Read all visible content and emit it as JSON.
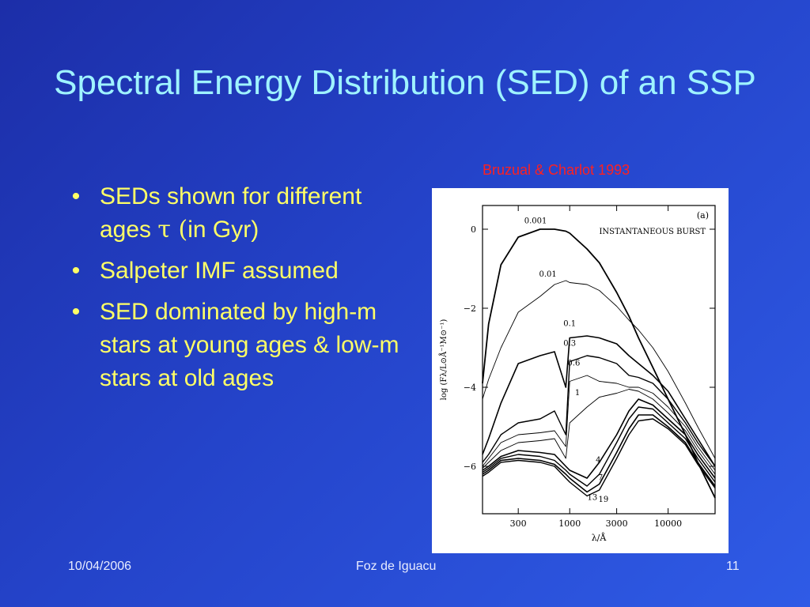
{
  "slide": {
    "title": "Spectral Energy Distribution (SED) of an SSP",
    "credit": "Bruzual & Charlot 1993",
    "bullets": [
      {
        "pre": "SEDs shown for different ages ",
        "sym": "τ (",
        "post": "in Gyr)"
      },
      {
        "text": "Salpeter IMF assumed"
      },
      {
        "text": "SED dominated by high-m stars at young ages & low-m stars at old ages"
      }
    ],
    "footer": {
      "date": "10/04/2006",
      "center": "Foz de Iguacu",
      "page": "11"
    }
  },
  "chart_data": {
    "type": "line",
    "panel_label": "(a)",
    "annotation": "INSTANTANEOUS BURST",
    "xlabel": "λ/Å",
    "ylabel": "log (Fλ/L⊙Å⁻¹M⊙⁻¹)",
    "x_scale": "log",
    "xlim": [
      130,
      30000
    ],
    "ylim": [
      -7.2,
      0.6
    ],
    "x_ticks": [
      300,
      1000,
      3000,
      10000
    ],
    "x_tick_labels": [
      "300",
      "1000",
      "3000",
      "10000"
    ],
    "y_ticks": [
      0,
      -2,
      -4,
      -6
    ],
    "y_tick_labels": [
      "0",
      "−2",
      "−4",
      "−6"
    ],
    "x": [
      130,
      150,
      200,
      300,
      500,
      700,
      912,
      1000,
      1500,
      2000,
      3000,
      4000,
      5000,
      7000,
      10000,
      15000,
      20000,
      30000
    ],
    "series": [
      {
        "name": "0.001",
        "values": [
          -3.9,
          -2.4,
          -0.9,
          -0.2,
          0.0,
          0.0,
          -0.05,
          -0.1,
          -0.5,
          -0.85,
          -1.6,
          -2.2,
          -2.75,
          -3.5,
          -4.3,
          -5.2,
          -5.9,
          -6.8
        ]
      },
      {
        "name": "0.01",
        "values": [
          -4.3,
          -3.8,
          -3.0,
          -2.1,
          -1.7,
          -1.4,
          -1.3,
          -1.35,
          -1.4,
          -1.55,
          -1.95,
          -2.3,
          -2.55,
          -3.0,
          -3.6,
          -4.4,
          -5.0,
          -5.8
        ]
      },
      {
        "name": "0.1",
        "values": [
          -5.7,
          -5.3,
          -4.4,
          -3.4,
          -3.2,
          -3.1,
          -4.0,
          -2.75,
          -2.7,
          -2.75,
          -2.9,
          -3.2,
          -3.4,
          -3.7,
          -4.1,
          -4.8,
          -5.3,
          -6.0
        ]
      },
      {
        "name": "0.3",
        "values": [
          -5.9,
          -5.7,
          -5.2,
          -4.9,
          -4.8,
          -4.6,
          -5.2,
          -3.35,
          -3.2,
          -3.25,
          -3.4,
          -3.7,
          -3.75,
          -3.9,
          -4.3,
          -4.9,
          -5.4,
          -6.0
        ]
      },
      {
        "name": "0.6",
        "values": [
          -6.0,
          -5.8,
          -5.4,
          -5.2,
          -5.15,
          -5.1,
          -5.5,
          -3.85,
          -3.7,
          -3.85,
          -3.9,
          -4.0,
          -4.0,
          -4.15,
          -4.5,
          -5.0,
          -5.5,
          -6.1
        ]
      },
      {
        "name": "1",
        "values": [
          -6.05,
          -5.9,
          -5.6,
          -5.4,
          -5.35,
          -5.3,
          -5.8,
          -4.9,
          -4.5,
          -4.25,
          -4.15,
          -4.05,
          -4.1,
          -4.3,
          -4.65,
          -5.1,
          -5.6,
          -6.2
        ]
      },
      {
        "name": "4",
        "values": [
          -6.1,
          -6.0,
          -5.75,
          -5.6,
          -5.65,
          -5.7,
          -6.0,
          -6.1,
          -6.3,
          -5.9,
          -5.2,
          -4.6,
          -4.3,
          -4.45,
          -4.8,
          -5.2,
          -5.7,
          -6.3
        ]
      },
      {
        "name": "7",
        "values": [
          -6.15,
          -6.05,
          -5.8,
          -5.7,
          -5.75,
          -5.85,
          -6.1,
          -6.2,
          -6.5,
          -6.2,
          -5.4,
          -4.8,
          -4.5,
          -4.55,
          -4.9,
          -5.3,
          -5.8,
          -6.4
        ]
      },
      {
        "name": "13",
        "values": [
          -6.2,
          -6.1,
          -5.85,
          -5.8,
          -5.85,
          -5.95,
          -6.2,
          -6.3,
          -6.65,
          -6.45,
          -5.65,
          -5.05,
          -4.7,
          -4.7,
          -5.0,
          -5.4,
          -5.9,
          -6.5
        ]
      },
      {
        "name": "19",
        "values": [
          -6.25,
          -6.15,
          -5.9,
          -5.85,
          -5.9,
          -6.0,
          -6.3,
          -6.4,
          -6.75,
          -6.6,
          -5.8,
          -5.2,
          -4.85,
          -4.8,
          -5.05,
          -5.45,
          -5.95,
          -6.55
        ]
      }
    ]
  }
}
